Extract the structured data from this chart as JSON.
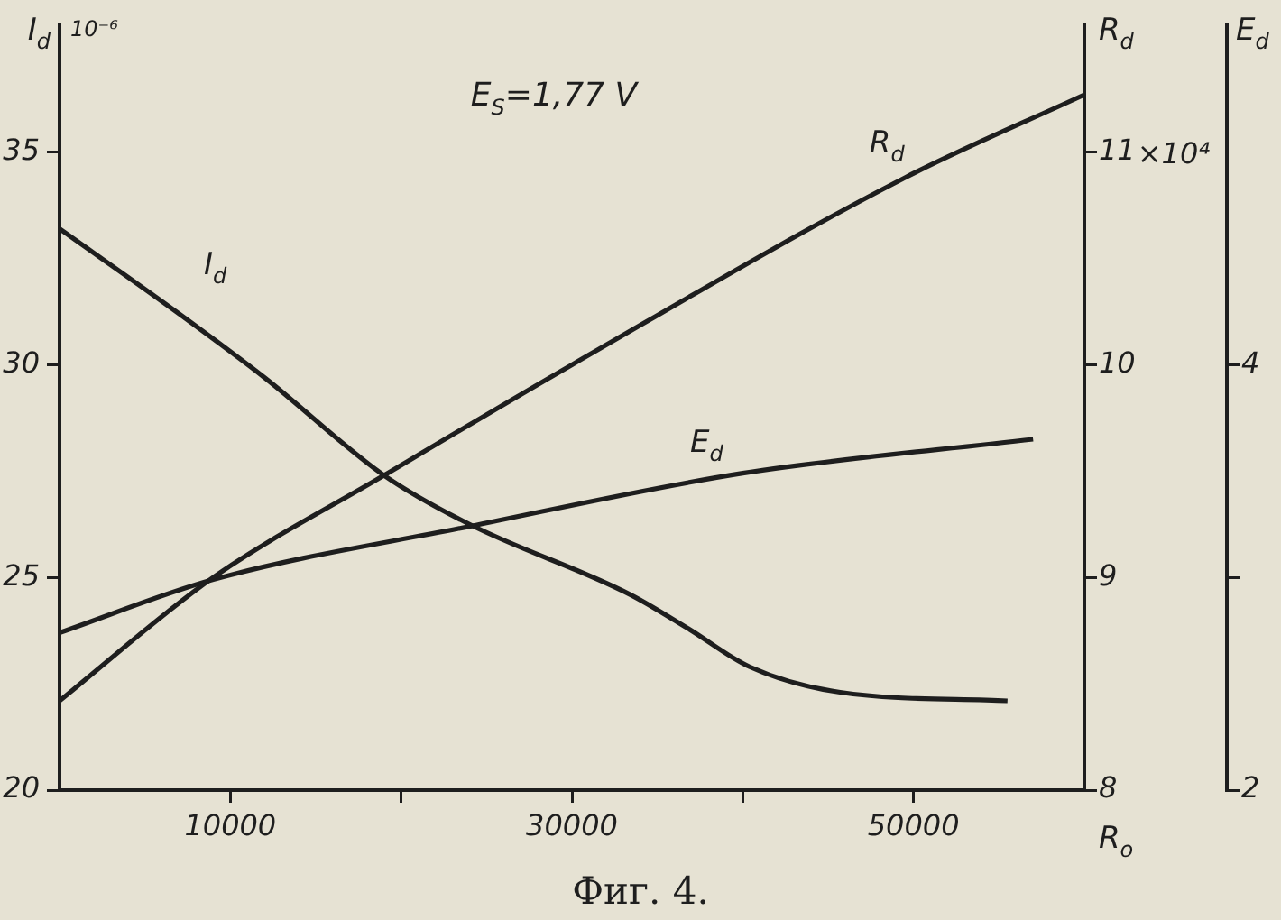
{
  "chart_data": {
    "type": "line",
    "xlabel": "R$_{o}$",
    "ylabel": "I$_{d}$ 10⁻⁶",
    "y2label": "R$_{d}$",
    "y3label": "E$_{d}$",
    "annotations": [
      "E$_{S}$=1,77 V",
      "Фиг. 4.",
      "×10⁴"
    ],
    "xlim": [
      0,
      60000
    ],
    "xticks": [
      10000,
      {
        "value": 20000,
        "label": null
      },
      30000,
      {
        "value": 40000,
        "label": null
      },
      50000
    ],
    "ylim": [
      20,
      38
    ],
    "yticks": [
      20,
      25,
      30,
      35
    ],
    "y2lim": [
      8,
      11.6
    ],
    "y2ticks": [
      8,
      9,
      10,
      11
    ],
    "y3lim": [
      2,
      5.6
    ],
    "y3ticks": [
      2,
      {
        "value": 3,
        "label": null
      },
      4
    ],
    "grid": false,
    "legend": false,
    "series": [
      {
        "name": "I$_{d}$",
        "color": "#1e1e1e",
        "x": [
          0,
          7000,
          12000,
          19000,
          24000,
          33400,
          36800,
          40400,
          45700,
          55500
        ],
        "values": [
          33.2,
          31.2,
          29.7,
          27.4,
          26.25,
          24.6,
          23.8,
          22.9,
          22.3,
          22.1
        ]
      },
      {
        "name": "R$_{d}$",
        "color": "#1e1e1e",
        "axis": "y2",
        "x": [
          0,
          9000,
          19000,
          30000,
          49500,
          60000
        ],
        "values": [
          8.42,
          9.0,
          9.48,
          10.0,
          10.88,
          11.27
        ]
      },
      {
        "name": "E$_{d}$",
        "color": "#1e1e1e",
        "axis": "y3",
        "x": [
          0,
          9000,
          24000,
          40000,
          57000
        ],
        "values": [
          2.74,
          2.99,
          3.24,
          3.49,
          3.65
        ]
      }
    ]
  }
}
